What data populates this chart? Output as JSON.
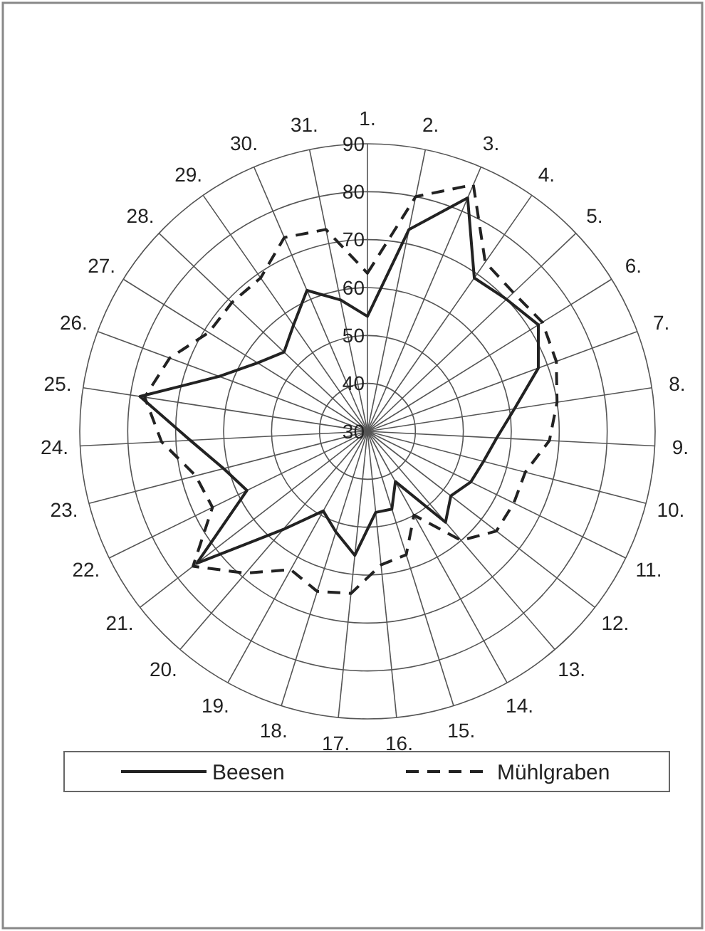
{
  "chart_data": {
    "type": "radar",
    "categories": [
      "1.",
      "2.",
      "3.",
      "4.",
      "5.",
      "6.",
      "7.",
      "8.",
      "9.",
      "10.",
      "11.",
      "12.",
      "13.",
      "14.",
      "15.",
      "16.",
      "17.",
      "18.",
      "19.",
      "20.",
      "21.",
      "22.",
      "23.",
      "24.",
      "25.",
      "26.",
      "27.",
      "28.",
      "29.",
      "30.",
      "31."
    ],
    "series": [
      {
        "name": "Beesen",
        "color": "#222222",
        "line_style": "solid",
        "values": [
          54,
          73,
          83,
          69,
          70,
          72,
          68,
          61,
          57,
          55,
          54,
          52,
          55,
          42,
          47,
          47,
          56,
          52,
          49,
          57,
          75,
          58,
          61,
          67,
          78,
          63,
          57,
          54,
          57,
          62,
          58
        ]
      },
      {
        "name": "Mühlgraben",
        "color": "#222222",
        "line_style": "dashed",
        "values": [
          63,
          80,
          86,
          73,
          72,
          73,
          72,
          70,
          68,
          64,
          64,
          64,
          60,
          50,
          57,
          58,
          64,
          65,
          63,
          69,
          76,
          66,
          67,
          73,
          77,
          74,
          69,
          69,
          69,
          74,
          73
        ]
      }
    ],
    "ylim": [
      30,
      90
    ],
    "yticks": [
      30,
      40,
      50,
      60,
      70,
      80,
      90
    ],
    "grid": true,
    "legend": "bottom",
    "marker": "none"
  }
}
